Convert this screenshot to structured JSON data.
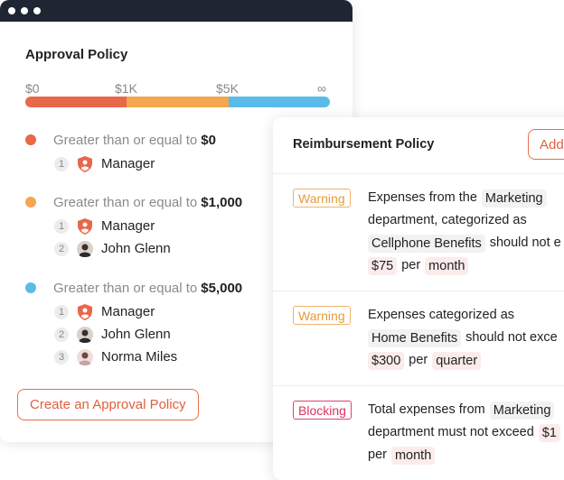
{
  "colors": {
    "tier1": "#e8684a",
    "tier2": "#f4a651",
    "tier3": "#5bbbe8",
    "accent": "#e96e4c",
    "warning": "#f0b36b",
    "blocking": "#e0426b"
  },
  "approval": {
    "title": "Approval Policy",
    "scale": [
      "$0",
      "$1K",
      "$5K",
      "∞"
    ],
    "tiers": [
      {
        "prefix": "Greater than or equal to",
        "amount": "$0",
        "approvers": [
          {
            "step": "1",
            "name": "Manager",
            "icon": "manager-shield-icon"
          }
        ]
      },
      {
        "prefix": "Greater than or equal to",
        "amount": "$1,000",
        "approvers": [
          {
            "step": "1",
            "name": "Manager",
            "icon": "manager-shield-icon"
          },
          {
            "step": "2",
            "name": "John Glenn",
            "icon": "avatar"
          }
        ]
      },
      {
        "prefix": "Greater than or equal to",
        "amount": "$5,000",
        "approvers": [
          {
            "step": "1",
            "name": "Manager",
            "icon": "manager-shield-icon"
          },
          {
            "step": "2",
            "name": "John Glenn",
            "icon": "avatar"
          },
          {
            "step": "3",
            "name": "Norma Miles",
            "icon": "avatar"
          }
        ]
      }
    ],
    "create_button": "Create an Approval Policy"
  },
  "reimbursement": {
    "title": "Reimbursement Policy",
    "add_button": "Add",
    "rules": [
      {
        "badge": "Warning",
        "line1_text": "Expenses from the",
        "line1_chip": "Marketing",
        "line2_text": "department, categorized as",
        "line3_chip": "Cellphone Benefits",
        "line3_text": "should not e",
        "line4_amount": "$75",
        "line4_text": "per",
        "line4_chip": "month"
      },
      {
        "badge": "Warning",
        "line1_text": "Expenses categorized as",
        "line2_chip": "Home Benefits",
        "line2_text": "should not exce",
        "line3_amount": "$300",
        "line3_text": "per",
        "line3_chip": "quarter"
      },
      {
        "badge": "Blocking",
        "line1_text": "Total expenses from",
        "line1_chip": "Marketing",
        "line2_text": "department must not exceed",
        "line2_amount": "$1",
        "line3_text": "per",
        "line3_chip": "month"
      }
    ]
  }
}
